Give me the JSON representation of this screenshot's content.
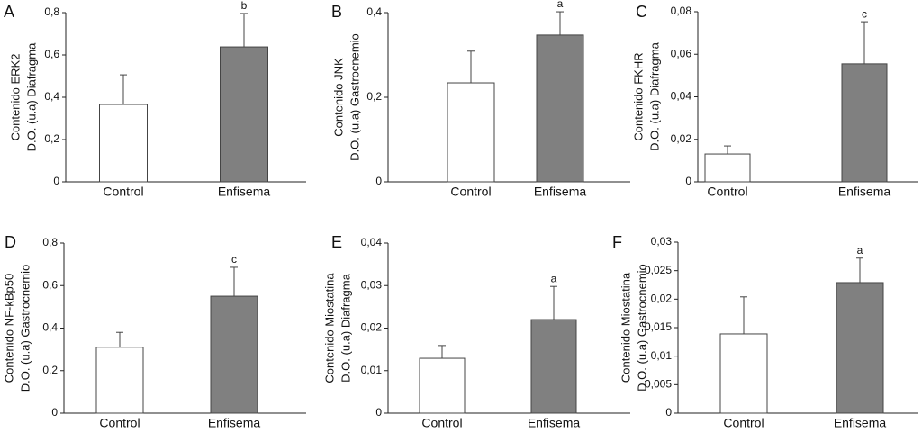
{
  "chart_data": [
    {
      "type": "bar",
      "panel": "A",
      "ylabel": [
        "Contenido ERK2",
        "D.O. (u.a) Diafragma"
      ],
      "categories": [
        "Control",
        "Enfisema"
      ],
      "values": [
        0.366,
        0.638
      ],
      "errors": [
        0.14,
        0.158
      ],
      "significance": [
        null,
        "b"
      ],
      "colors": [
        "#ffffff",
        "#808080"
      ],
      "ylim": [
        0,
        0.8
      ],
      "yticks": [
        0,
        {
          "value": 0.2,
          "label": "0,2"
        },
        {
          "value": 0.4,
          "label": "0,4"
        },
        {
          "value": 0.6,
          "label": "0,6"
        },
        {
          "value": 0.8,
          "label": "0,8"
        }
      ]
    },
    {
      "type": "bar",
      "panel": "B",
      "ylabel": [
        "Contenido JNK",
        "D.O. (u.a) Gastrocnemio"
      ],
      "categories": [
        "Control",
        "Enfisema"
      ],
      "values": [
        0.234,
        0.347
      ],
      "errors": [
        0.075,
        0.055
      ],
      "significance": [
        null,
        "a"
      ],
      "colors": [
        "#ffffff",
        "#808080"
      ],
      "ylim": [
        0,
        0.4
      ],
      "yticks": [
        0,
        {
          "value": 0.2,
          "label": "0,2"
        },
        {
          "value": 0.4,
          "label": "0,4"
        }
      ]
    },
    {
      "type": "bar",
      "panel": "C",
      "ylabel": [
        "Contenido FKHR",
        "D.O. (u.a) Diafragma"
      ],
      "categories": [
        "Control",
        "Enfisema"
      ],
      "values": [
        0.0131,
        0.0555
      ],
      "errors": [
        0.0038,
        0.0198
      ],
      "significance": [
        null,
        "c"
      ],
      "colors": [
        "#ffffff",
        "#808080"
      ],
      "ylim": [
        0,
        0.08
      ],
      "yticks": [
        0,
        {
          "value": 0.02,
          "label": "0,02"
        },
        {
          "value": 0.04,
          "label": "0,04"
        },
        {
          "value": 0.06,
          "label": "0,06"
        },
        {
          "value": 0.08,
          "label": "0,08"
        }
      ]
    },
    {
      "type": "bar",
      "panel": "D",
      "ylabel": [
        "Contenido NF-kBp50",
        "D.O. (u.a) Gastrocnemio"
      ],
      "categories": [
        "Control",
        "Enfisema"
      ],
      "values": [
        0.31,
        0.55
      ],
      "errors": [
        0.07,
        0.136
      ],
      "significance": [
        null,
        "c"
      ],
      "colors": [
        "#ffffff",
        "#808080"
      ],
      "ylim": [
        0,
        0.8
      ],
      "yticks": [
        0,
        {
          "value": 0.2,
          "label": "0,2"
        },
        {
          "value": 0.4,
          "label": "0,4"
        },
        {
          "value": 0.6,
          "label": "0,6"
        },
        {
          "value": 0.8,
          "label": "0,8"
        }
      ]
    },
    {
      "type": "bar",
      "panel": "E",
      "ylabel": [
        "Contenido Miostatina",
        "D.O. (u.a) Diafragma"
      ],
      "categories": [
        "Control",
        "Enfisema"
      ],
      "values": [
        0.0129,
        0.022
      ],
      "errors": [
        0.003,
        0.0078
      ],
      "significance": [
        null,
        "a"
      ],
      "colors": [
        "#ffffff",
        "#808080"
      ],
      "ylim": [
        0,
        0.04
      ],
      "yticks": [
        0,
        {
          "value": 0.01,
          "label": "0,01"
        },
        {
          "value": 0.02,
          "label": "0,02"
        },
        {
          "value": 0.03,
          "label": "0,03"
        },
        {
          "value": 0.04,
          "label": "0,04"
        }
      ]
    },
    {
      "type": "bar",
      "panel": "F",
      "ylabel": [
        "Contenido Miostatina",
        "D.O. (u.a) Gastrocnemio"
      ],
      "categories": [
        "Control",
        "Enfisema"
      ],
      "values": [
        0.0139,
        0.0229
      ],
      "errors": [
        0.0065,
        0.0043
      ],
      "significance": [
        null,
        "a"
      ],
      "colors": [
        "#ffffff",
        "#808080"
      ],
      "ylim": [
        0,
        0.03
      ],
      "yticks": [
        0,
        {
          "value": 0.005,
          "label": "0,005"
        },
        {
          "value": 0.01,
          "label": "0,01"
        },
        {
          "value": 0.015,
          "label": "0,015"
        },
        {
          "value": 0.02,
          "label": "0,02"
        },
        {
          "value": 0.025,
          "label": "0,025"
        },
        {
          "value": 0.03,
          "label": "0,03"
        }
      ]
    }
  ]
}
